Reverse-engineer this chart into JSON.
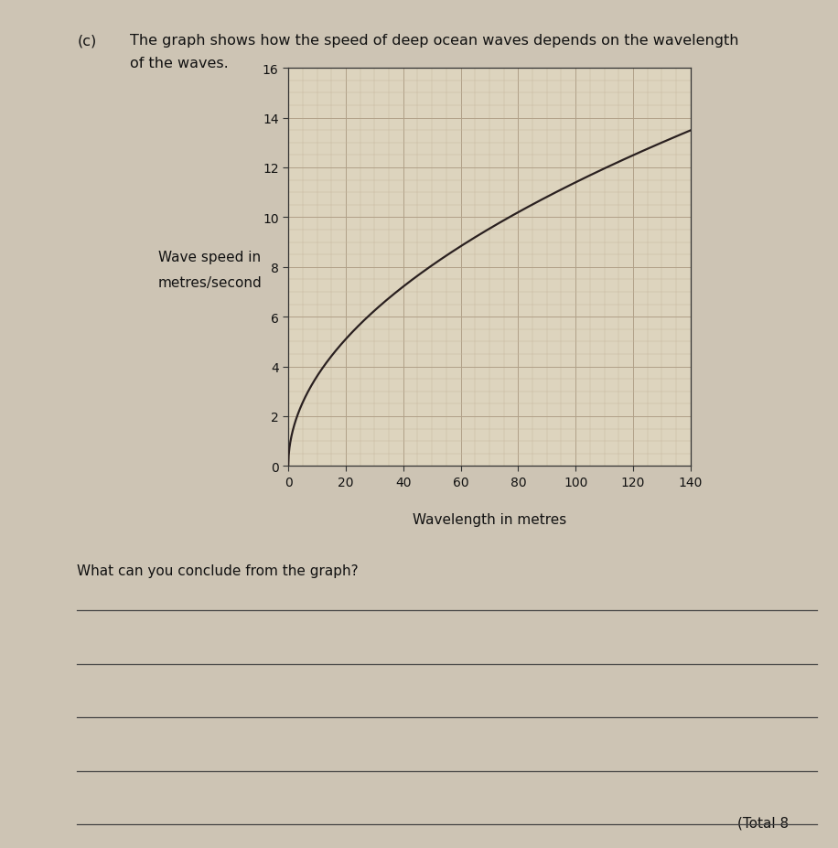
{
  "title_part_c": "(c)",
  "description_line1": "The graph shows how the speed of deep ocean waves depends on the wavelength",
  "description_line2": "of the waves.",
  "xlabel": "Wavelength in metres",
  "ylabel_line1": "Wave speed in",
  "ylabel_line2": "metres/second",
  "xlim": [
    0,
    140
  ],
  "ylim": [
    0,
    16
  ],
  "xticks": [
    0,
    20,
    40,
    60,
    80,
    100,
    120,
    140
  ],
  "yticks": [
    0,
    2,
    4,
    6,
    8,
    10,
    12,
    14,
    16
  ],
  "curve_color": "#2a2020",
  "curve_linewidth": 1.6,
  "major_grid_color": "#b0a088",
  "major_grid_linewidth": 0.7,
  "minor_grid_color": "#c8b89e",
  "minor_grid_linewidth": 0.35,
  "plot_bg_color": "#ddd4be",
  "fig_bg_color": "#cdc4b4",
  "question_text": "What can you conclude from the graph?",
  "total_text": "(Total 8",
  "wave_speed_scale": 1.14,
  "answer_lines": 5,
  "answer_line_color": "#444444",
  "tick_fontsize": 10,
  "label_fontsize": 11,
  "header_fontsize": 11.5
}
